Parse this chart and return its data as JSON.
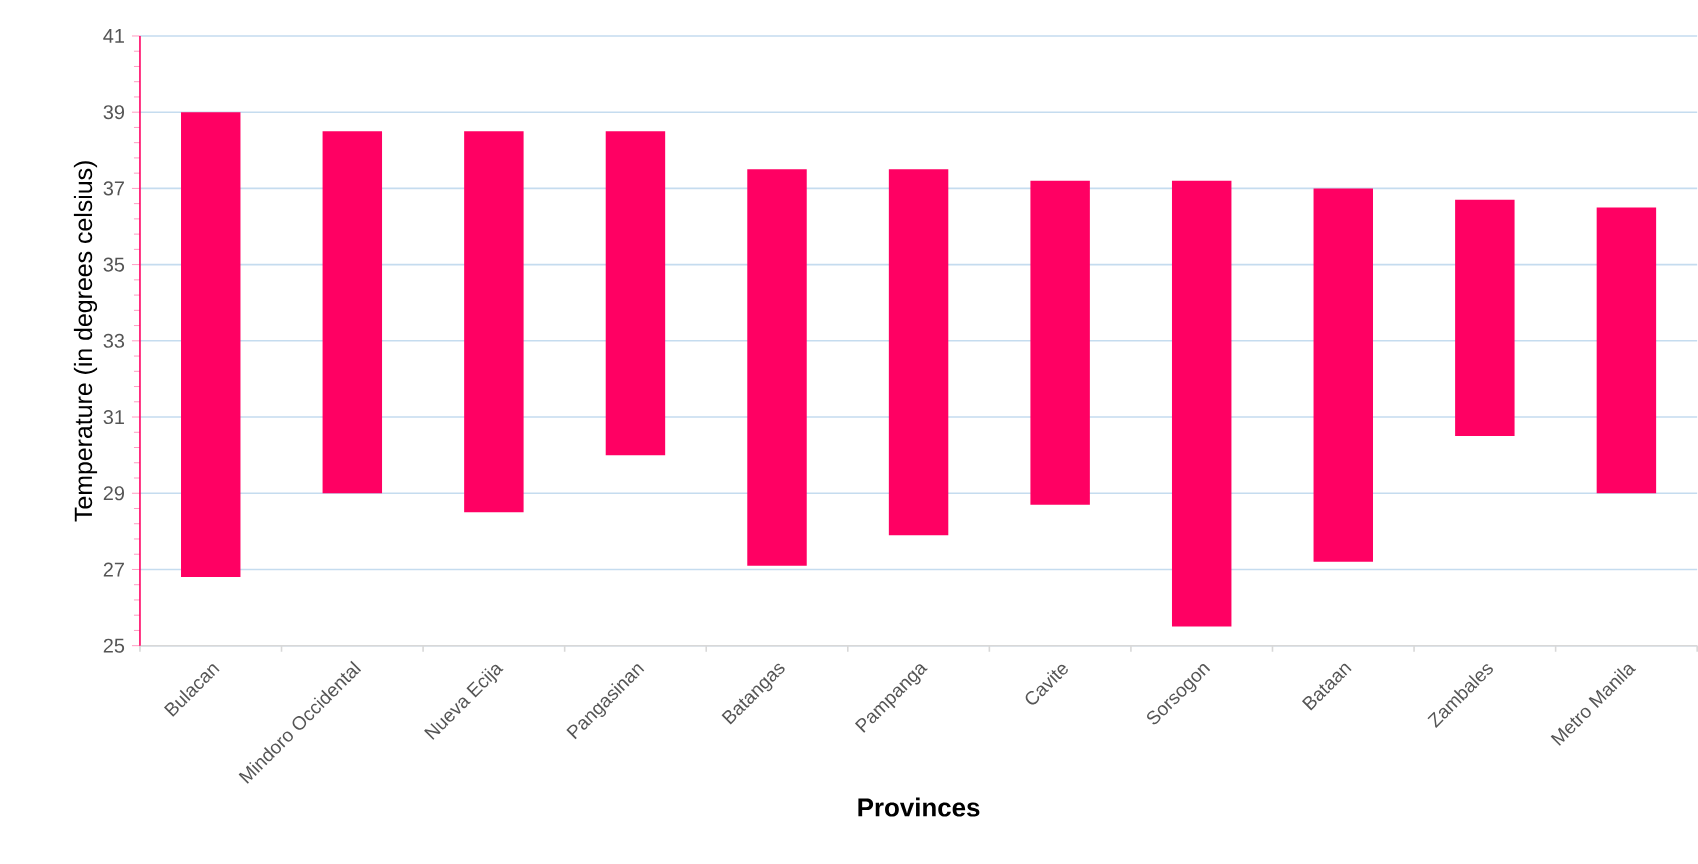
{
  "chart_data": {
    "type": "bar",
    "xlabel": "Provinces",
    "ylabel": "Temperature (in degrees celsius)",
    "categories": [
      "Bulacan",
      "Mindoro Occidental",
      "Nueva Ecija",
      "Pangasinan",
      "Batangas",
      "Pampanga",
      "Cavite",
      "Sorsogon",
      "Bataan",
      "Zambales",
      "Metro Manila"
    ],
    "base": [
      26.8,
      29.0,
      28.5,
      30.0,
      27.1,
      27.9,
      28.7,
      25.5,
      27.2,
      30.5,
      29.0
    ],
    "values": [
      12.2,
      9.5,
      10.0,
      8.5,
      10.4,
      9.6,
      8.5,
      11.7,
      9.8,
      6.2,
      7.5
    ],
    "color": "#ff0063",
    "ylim": [
      25,
      41
    ],
    "yticks": [
      25,
      27,
      29,
      31,
      33,
      35,
      37,
      39,
      41
    ],
    "grid": "y"
  }
}
